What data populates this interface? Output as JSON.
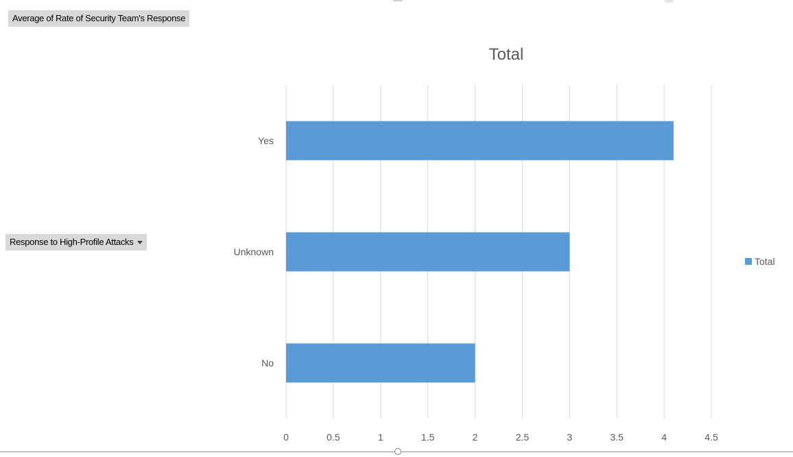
{
  "value_field_button": "Average of Rate of Security Team's Response",
  "axis_field_button": "Response to High-Profile Attacks",
  "colors": {
    "bar": "#5b9bd5",
    "grid": "#d9d9d9",
    "text": "#595959"
  },
  "chart_data": {
    "type": "bar",
    "orientation": "horizontal",
    "title": "Total",
    "categories": [
      "Yes",
      "Unknown",
      "No"
    ],
    "series": [
      {
        "name": "Total",
        "values": [
          4.1,
          3.0,
          2.0
        ]
      }
    ],
    "xlim": [
      0,
      4.5
    ],
    "xticks": [
      "0",
      "0.5",
      "1",
      "1.5",
      "2",
      "2.5",
      "3",
      "3.5",
      "4",
      "4.5"
    ],
    "xlabel": "",
    "ylabel": "",
    "grid": "vertical",
    "legend": "right"
  }
}
